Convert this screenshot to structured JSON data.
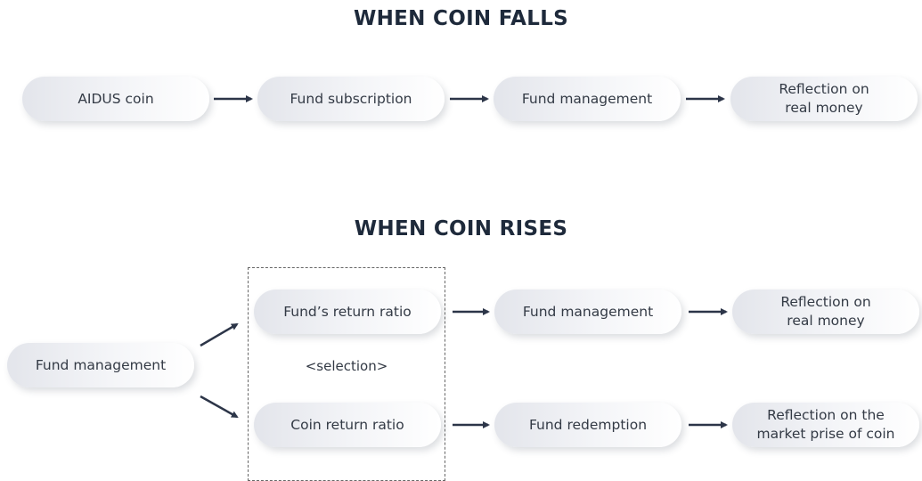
{
  "falls": {
    "title": "WHEN COIN FALLS",
    "nodes": [
      {
        "label": "AIDUS coin"
      },
      {
        "label": "Fund subscription"
      },
      {
        "label": "Fund management"
      },
      {
        "label": "Reflection on real money"
      }
    ]
  },
  "rises": {
    "title": "WHEN COIN RISES",
    "start": {
      "label": "Fund management"
    },
    "selection": {
      "label": "<selection>",
      "options": [
        {
          "label": "Fund’s return ratio"
        },
        {
          "label": "Coin return ratio"
        }
      ]
    },
    "branches": [
      [
        {
          "label": "Fund management"
        },
        {
          "label": "Reflection on real money"
        }
      ],
      [
        {
          "label": "Fund redemption"
        },
        {
          "label": "Reflection on the market prise of coin"
        }
      ]
    ]
  }
}
